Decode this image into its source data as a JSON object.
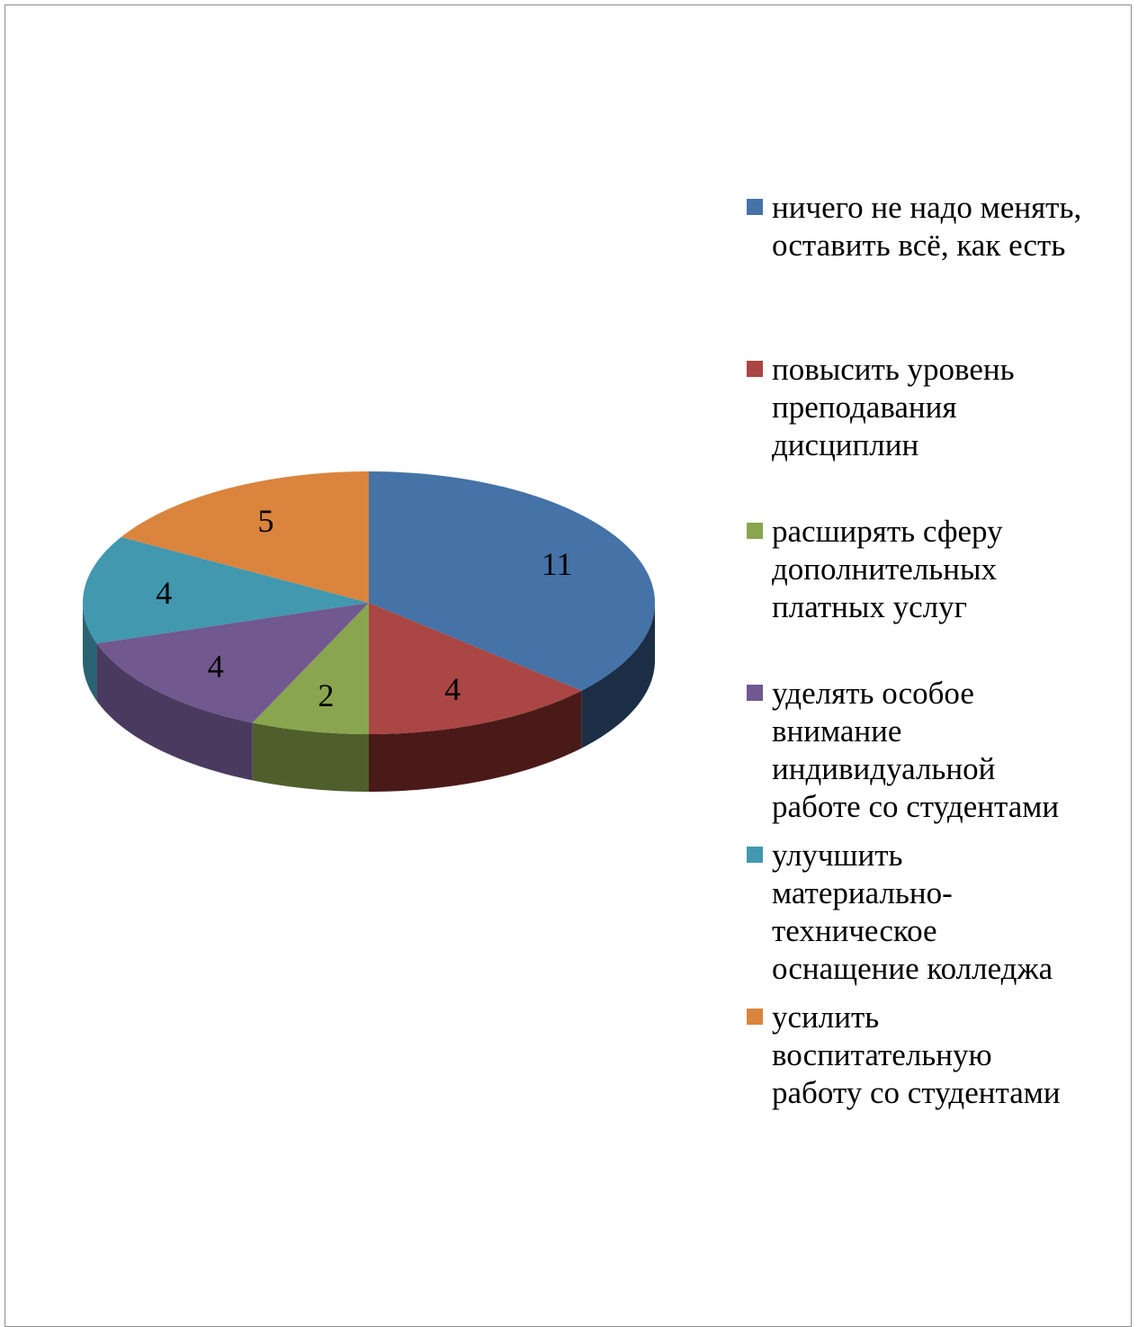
{
  "chart_data": {
    "type": "pie",
    "title": "",
    "style": "3d",
    "legend_position": "right",
    "data_labels": true,
    "slices": [
      {
        "label": "ничего не надо менять,\nоставить всё, как есть",
        "value": 11,
        "color": "#4572a7",
        "side_color": "#1c2e46"
      },
      {
        "label": "повысить уровень\nпреподавания\nдисциплин",
        "value": 4,
        "color": "#aa4643",
        "side_color": "#4a1a19"
      },
      {
        "label": "расширять сферу\nдополнительных\nплатных услуг",
        "value": 2,
        "color": "#89a54e",
        "side_color": "#4e5f2b"
      },
      {
        "label": "уделять особое\nвнимание\nиндивидуальной\nработе со студентами",
        "value": 4,
        "color": "#71588f",
        "side_color": "#4a3a5f"
      },
      {
        "label": "улучшить\nматериально-\nтехническое\nоснащение колледжа",
        "value": 4,
        "color": "#4198af",
        "side_color": "#2a6373"
      },
      {
        "label": "усилить\nвоспитательную\nработу со студентами",
        "value": 5,
        "color": "#db843d",
        "side_color": "#8a5020"
      }
    ]
  }
}
